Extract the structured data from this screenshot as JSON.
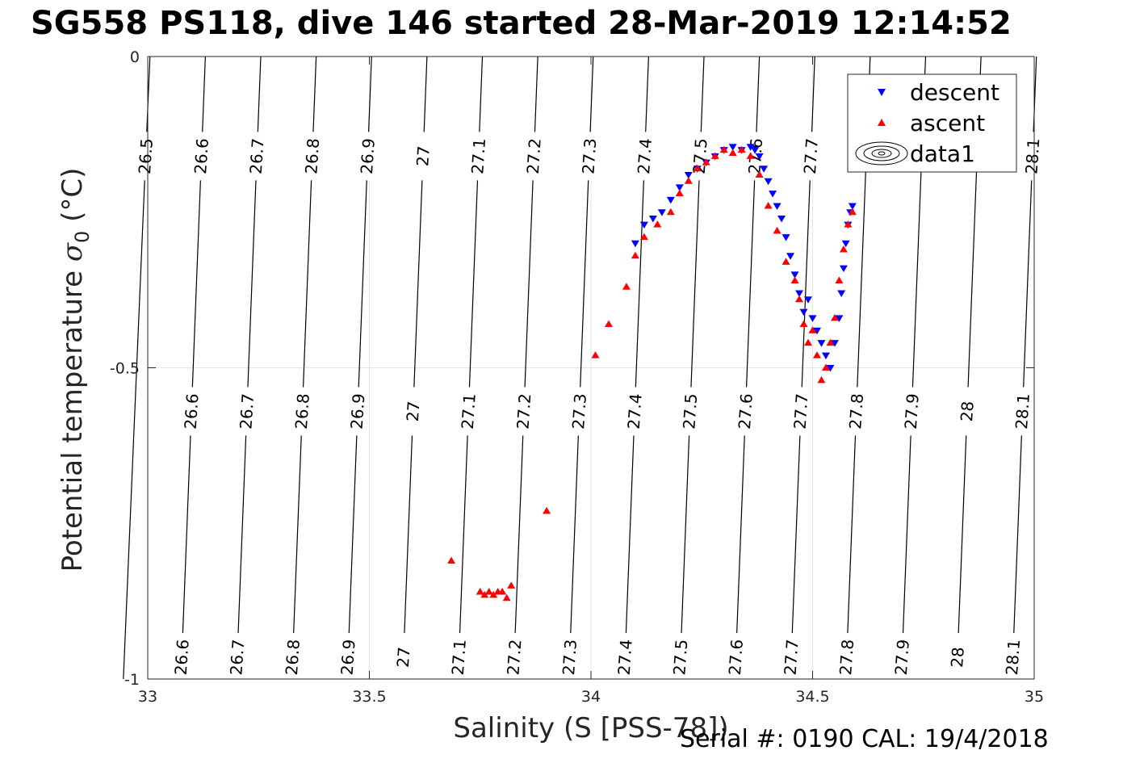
{
  "title": "SG558 PS118, dive 146 started 28-Mar-2019 12:14:52",
  "footer": "Serial #: 0190  CAL: 19/4/2018",
  "chart_data": {
    "type": "scatter",
    "title": "SG558 PS118, dive 146 started 28-Mar-2019 12:14:52",
    "xlabel": "Salinity (S [PSS-78])",
    "ylabel_main": "Potential temperature ",
    "ylabel_sym": "σ",
    "ylabel_sub": "0",
    "ylabel_tail": " (°C)",
    "xlim": [
      33,
      35
    ],
    "ylim": [
      -1,
      0
    ],
    "xticks": [
      "33",
      "33.5",
      "34",
      "34.5",
      "35"
    ],
    "xtick_values": [
      33,
      33.5,
      34,
      34.5,
      35
    ],
    "yticks": [
      "0",
      "-0.5",
      "-1"
    ],
    "ytick_values": [
      0,
      -0.5,
      -1
    ],
    "grid": true,
    "legend": {
      "location": "top-right",
      "entries": [
        "descent",
        "ascent",
        "data1"
      ]
    },
    "contours": {
      "top_labels": [
        "26.5",
        "26.6",
        "26.7",
        "26.8",
        "26.9",
        "27",
        "27.1",
        "27.2",
        "27.3",
        "27.4",
        "27.5",
        "27.6",
        "27.7",
        "28.1"
      ],
      "mid_labels": [
        "26.6",
        "26.7",
        "26.8",
        "26.9",
        "27",
        "27.1",
        "27.2",
        "27.3",
        "27.4",
        "27.5",
        "27.6",
        "27.7",
        "27.8",
        "27.9",
        "28",
        "28.1"
      ],
      "bottom_labels": [
        "26.6",
        "26.7",
        "26.8",
        "26.9",
        "27",
        "27.1",
        "27.2",
        "27.3",
        "27.4",
        "27.5",
        "27.6",
        "27.7",
        "27.8",
        "27.9",
        "28",
        "28.1"
      ],
      "levels": [
        26.5,
        26.6,
        26.7,
        26.8,
        26.9,
        27.0,
        27.1,
        27.2,
        27.3,
        27.4,
        27.5,
        27.6,
        27.7,
        27.8,
        27.9,
        28.0,
        28.1
      ],
      "s_at_top": [
        33.005,
        33.13,
        33.255,
        33.38,
        33.505,
        33.63,
        33.755,
        33.88,
        34.005,
        34.13,
        34.255,
        34.38,
        34.505,
        34.63,
        34.755,
        34.88,
        35.005
      ],
      "s_at_bottom": [
        32.945,
        33.075,
        33.2,
        33.325,
        33.45,
        33.575,
        33.7,
        33.825,
        33.95,
        34.075,
        34.2,
        34.325,
        34.45,
        34.575,
        34.7,
        34.825,
        34.95
      ]
    },
    "series": [
      {
        "name": "descent",
        "color": "#0000ff",
        "marker": "triangle-down",
        "x": [
          34.1,
          34.12,
          34.14,
          34.16,
          34.18,
          34.2,
          34.22,
          34.24,
          34.26,
          34.28,
          34.3,
          34.32,
          34.34,
          34.36,
          34.37,
          34.38,
          34.39,
          34.4,
          34.41,
          34.42,
          34.43,
          34.44,
          34.45,
          34.46,
          34.47,
          34.48,
          34.49,
          34.5,
          34.51,
          34.52,
          34.53,
          34.54,
          34.55,
          34.56,
          34.565,
          34.57,
          34.575,
          34.58,
          34.585,
          34.59
        ],
        "y": [
          -0.3,
          -0.27,
          -0.26,
          -0.25,
          -0.23,
          -0.21,
          -0.19,
          -0.18,
          -0.17,
          -0.16,
          -0.15,
          -0.145,
          -0.15,
          -0.145,
          -0.15,
          -0.16,
          -0.18,
          -0.2,
          -0.22,
          -0.24,
          -0.26,
          -0.29,
          -0.32,
          -0.35,
          -0.38,
          -0.41,
          -0.39,
          -0.42,
          -0.44,
          -0.46,
          -0.48,
          -0.5,
          -0.46,
          -0.42,
          -0.38,
          -0.34,
          -0.3,
          -0.27,
          -0.25,
          -0.24
        ]
      },
      {
        "name": "ascent",
        "color": "#ff0000",
        "marker": "triangle-up",
        "x": [
          33.685,
          33.75,
          33.76,
          33.77,
          33.78,
          33.79,
          33.8,
          33.81,
          33.82,
          33.9,
          34.01,
          34.04,
          34.08,
          34.1,
          34.12,
          34.15,
          34.18,
          34.2,
          34.22,
          34.24,
          34.26,
          34.28,
          34.3,
          34.32,
          34.34,
          34.36,
          34.38,
          34.4,
          34.42,
          34.44,
          34.46,
          34.47,
          34.48,
          34.49,
          34.5,
          34.51,
          34.52,
          34.53,
          34.54,
          34.55,
          34.56,
          34.57,
          34.58,
          34.59
        ],
        "y": [
          -0.81,
          -0.86,
          -0.865,
          -0.86,
          -0.865,
          -0.86,
          -0.86,
          -0.87,
          -0.85,
          -0.73,
          -0.48,
          -0.43,
          -0.37,
          -0.32,
          -0.29,
          -0.27,
          -0.25,
          -0.22,
          -0.2,
          -0.18,
          -0.17,
          -0.16,
          -0.15,
          -0.155,
          -0.15,
          -0.16,
          -0.19,
          -0.24,
          -0.28,
          -0.33,
          -0.36,
          -0.39,
          -0.43,
          -0.46,
          -0.44,
          -0.48,
          -0.52,
          -0.5,
          -0.46,
          -0.42,
          -0.36,
          -0.31,
          -0.27,
          -0.25
        ]
      }
    ]
  }
}
